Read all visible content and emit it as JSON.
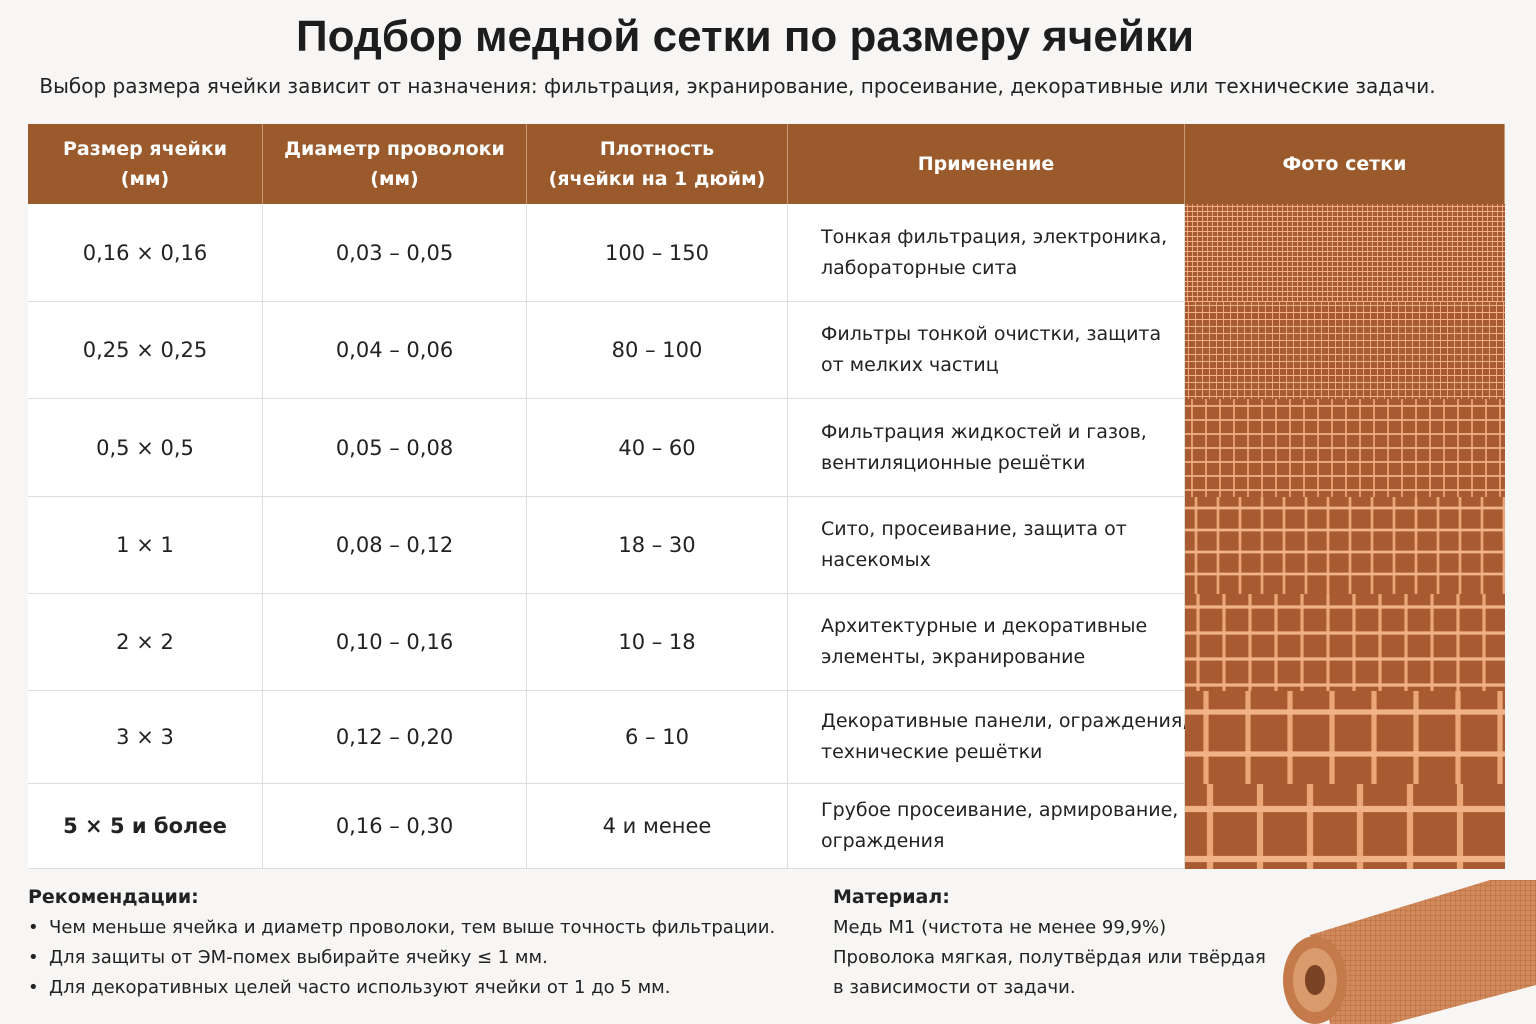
{
  "header": {
    "title": "Подбор медной сетки по размеру ячейки",
    "subtitle": "Выбор размера ячейки зависит от назначения: фильтрация, экранирование, просеивание, декоративные или технические задачи."
  },
  "table": {
    "headers": [
      [
        "Размер ячейки",
        "(мм)"
      ],
      [
        "Диаметр проволоки",
        "(мм)"
      ],
      [
        "Плотность",
        "(ячейки на 1 дюйм)"
      ],
      [
        "Применение"
      ],
      [
        "Фото сетки"
      ]
    ],
    "rows": [
      [
        "0,16 × 0,16",
        "0,03 – 0,05",
        "100 – 150",
        [
          "Тонкая фильтрация, электроника,",
          "лабораторные сита"
        ]
      ],
      [
        "0,25 × 0,25",
        "0,04 – 0,06",
        "80 – 100",
        [
          "Фильтры тонкой очистки, защита",
          "от мелких частиц"
        ]
      ],
      [
        "0,5 × 0,5",
        "0,05 – 0,08",
        "40 – 60",
        [
          "Фильтрация жидкостей и газов,",
          "вентиляционные решётки"
        ]
      ],
      [
        "1 × 1",
        "0,08 – 0,12",
        "18 – 30",
        [
          "Сито, просеивание, защита от",
          "насекомых"
        ]
      ],
      [
        "2 × 2",
        "0,10 – 0,16",
        "10 – 18",
        [
          "Архитектурные и декоративные",
          "элементы, экранирование"
        ]
      ],
      [
        "3 × 3",
        "0,12 – 0,20",
        "6 – 10",
        [
          "Декоративные панели, ограждения,",
          "технические решётки"
        ]
      ],
      [
        "5 × 5 и более",
        "0,16 – 0,30",
        "4 и менее",
        [
          "Грубое просеивание, армирование,",
          "ограждения"
        ]
      ]
    ]
  },
  "recommendations": {
    "title": "Рекомендации:",
    "items": [
      "Чем меньше ячейка и диаметр проволоки, тем выше точность фильтрации.",
      "Для защиты от ЭМ-помех выбирайте ячейку ≤ 1 мм.",
      "Для декоративных целей часто используют ячейки от 1 до 5 мм."
    ]
  },
  "material": {
    "title": "Материал:",
    "lines": [
      "Медь М1 (чистота не менее 99,9%)",
      "Проволока мягкая, полутвёрдая или твёрдая",
      "в зависимости от задачи."
    ]
  }
}
